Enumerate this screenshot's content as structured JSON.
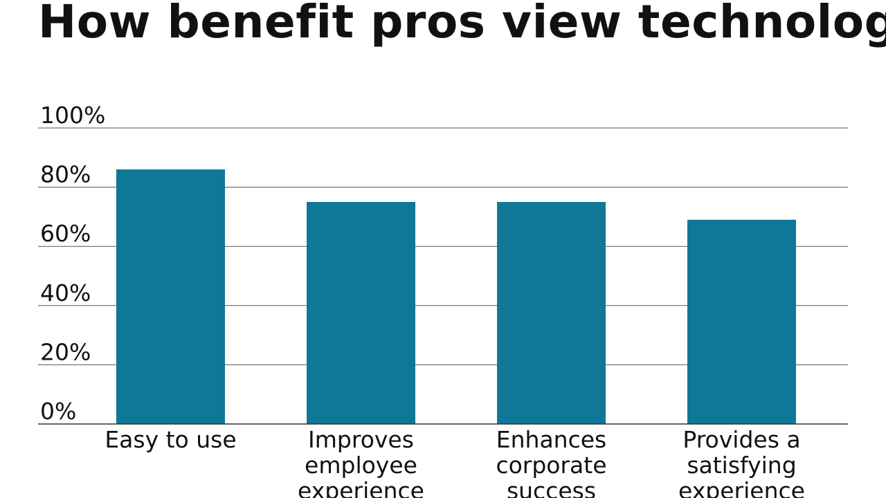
{
  "chart_data": {
    "type": "bar",
    "title": "How benefit pros view technology",
    "categories": [
      [
        "Easy to use"
      ],
      [
        "Improves",
        "employee",
        "experience"
      ],
      [
        "Enhances",
        "corporate",
        "success"
      ],
      [
        "Provides a",
        "satisfying",
        "experience"
      ]
    ],
    "values": [
      86,
      75,
      75,
      69
    ],
    "ylim": [
      0,
      100
    ],
    "yticks": [
      "0%",
      "20%",
      "40%",
      "60%",
      "80%",
      "100%"
    ],
    "grid": true,
    "colors": {
      "bar": "#0e7896",
      "gridline": "#555555",
      "text": "#111111"
    }
  }
}
